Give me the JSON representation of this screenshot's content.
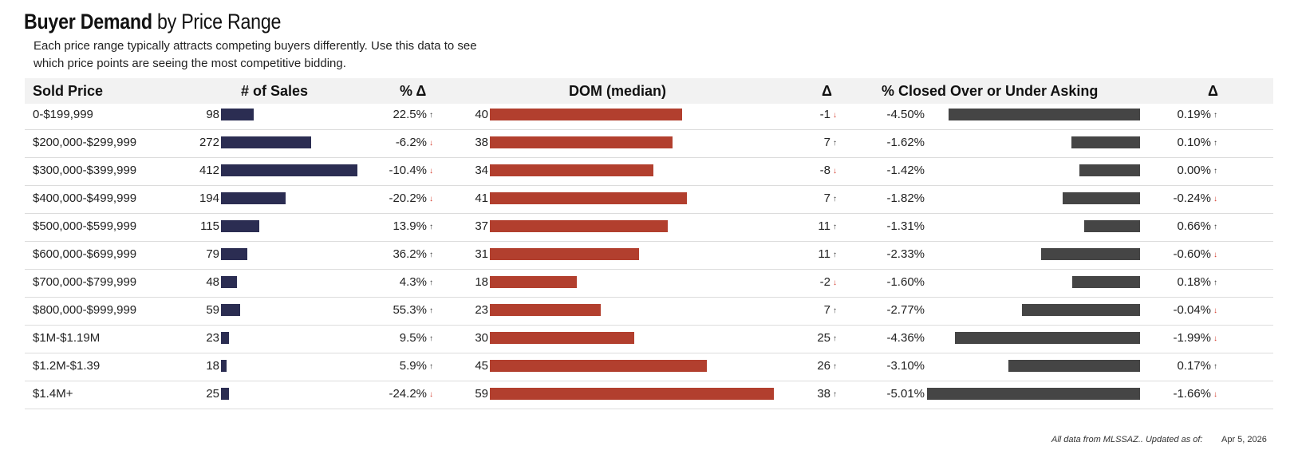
{
  "title_bold": "Buyer Demand",
  "title_rest": " by Price Range",
  "subtitle_line1": "Each price range typically attracts competing buyers differently.  Use this data to see",
  "subtitle_line2": "which price points are seeing the most competitive bidding.",
  "headers": {
    "price": "Sold Price",
    "sales": "# of Sales",
    "sales_change": "% Δ",
    "dom": "DOM (median)",
    "dom_change": "Δ",
    "closed": "% Closed Over or Under Asking",
    "closed_change": "Δ"
  },
  "colors": {
    "sales": "#2b2d52",
    "dom": "#b23f2e",
    "closed": "#454545",
    "down_arrow": "#d33a2c"
  },
  "footer": {
    "note": "All data from MLSSAZ.. Updated as of:",
    "date": "Apr 5, 2026"
  },
  "chart_data": {
    "type": "table",
    "title": "Buyer Demand by Price Range",
    "columns": [
      "Sold Price",
      "# of Sales",
      "% Δ",
      "DOM (median)",
      "Δ",
      "% Closed Over or Under Asking",
      "Δ"
    ],
    "rows": [
      {
        "price": "0-$199,999",
        "sales": 98,
        "sales_change": "22.5%",
        "sales_dir": "up",
        "dom": 40,
        "dom_change": "-1",
        "dom_dir": "down",
        "closed": -4.5,
        "closed_label": "-4.50%",
        "closed_change": "0.19%",
        "closed_dir": "up"
      },
      {
        "price": "$200,000-$299,999",
        "sales": 272,
        "sales_change": "-6.2%",
        "sales_dir": "down",
        "dom": 38,
        "dom_change": "7",
        "dom_dir": "up",
        "closed": -1.62,
        "closed_label": "-1.62%",
        "closed_change": "0.10%",
        "closed_dir": "up"
      },
      {
        "price": "$300,000-$399,999",
        "sales": 412,
        "sales_change": "-10.4%",
        "sales_dir": "down",
        "dom": 34,
        "dom_change": "-8",
        "dom_dir": "down",
        "closed": -1.42,
        "closed_label": "-1.42%",
        "closed_change": "0.00%",
        "closed_dir": "up"
      },
      {
        "price": "$400,000-$499,999",
        "sales": 194,
        "sales_change": "-20.2%",
        "sales_dir": "down",
        "dom": 41,
        "dom_change": "7",
        "dom_dir": "up",
        "closed": -1.82,
        "closed_label": "-1.82%",
        "closed_change": "-0.24%",
        "closed_dir": "down"
      },
      {
        "price": "$500,000-$599,999",
        "sales": 115,
        "sales_change": "13.9%",
        "sales_dir": "up",
        "dom": 37,
        "dom_change": "11",
        "dom_dir": "up",
        "closed": -1.31,
        "closed_label": "-1.31%",
        "closed_change": "0.66%",
        "closed_dir": "up"
      },
      {
        "price": "$600,000-$699,999",
        "sales": 79,
        "sales_change": "36.2%",
        "sales_dir": "up",
        "dom": 31,
        "dom_change": "11",
        "dom_dir": "up",
        "closed": -2.33,
        "closed_label": "-2.33%",
        "closed_change": "-0.60%",
        "closed_dir": "down"
      },
      {
        "price": "$700,000-$799,999",
        "sales": 48,
        "sales_change": "4.3%",
        "sales_dir": "up",
        "dom": 18,
        "dom_change": "-2",
        "dom_dir": "down",
        "closed": -1.6,
        "closed_label": "-1.60%",
        "closed_change": "0.18%",
        "closed_dir": "up"
      },
      {
        "price": "$800,000-$999,999",
        "sales": 59,
        "sales_change": "55.3%",
        "sales_dir": "up",
        "dom": 23,
        "dom_change": "7",
        "dom_dir": "up",
        "closed": -2.77,
        "closed_label": "-2.77%",
        "closed_change": "-0.04%",
        "closed_dir": "down"
      },
      {
        "price": "$1M-$1.19M",
        "sales": 23,
        "sales_change": "9.5%",
        "sales_dir": "up",
        "dom": 30,
        "dom_change": "25",
        "dom_dir": "up",
        "closed": -4.36,
        "closed_label": "-4.36%",
        "closed_change": "-1.99%",
        "closed_dir": "down"
      },
      {
        "price": "$1.2M-$1.39",
        "sales": 18,
        "sales_change": "5.9%",
        "sales_dir": "up",
        "dom": 45,
        "dom_change": "26",
        "dom_dir": "up",
        "closed": -3.1,
        "closed_label": "-3.10%",
        "closed_change": "0.17%",
        "closed_dir": "up"
      },
      {
        "price": "$1.4M+",
        "sales": 25,
        "sales_change": "-24.2%",
        "sales_dir": "down",
        "dom": 59,
        "dom_change": "38",
        "dom_dir": "up",
        "closed": -5.01,
        "closed_label": "-5.01%",
        "closed_change": "-1.66%",
        "closed_dir": "down"
      }
    ]
  }
}
